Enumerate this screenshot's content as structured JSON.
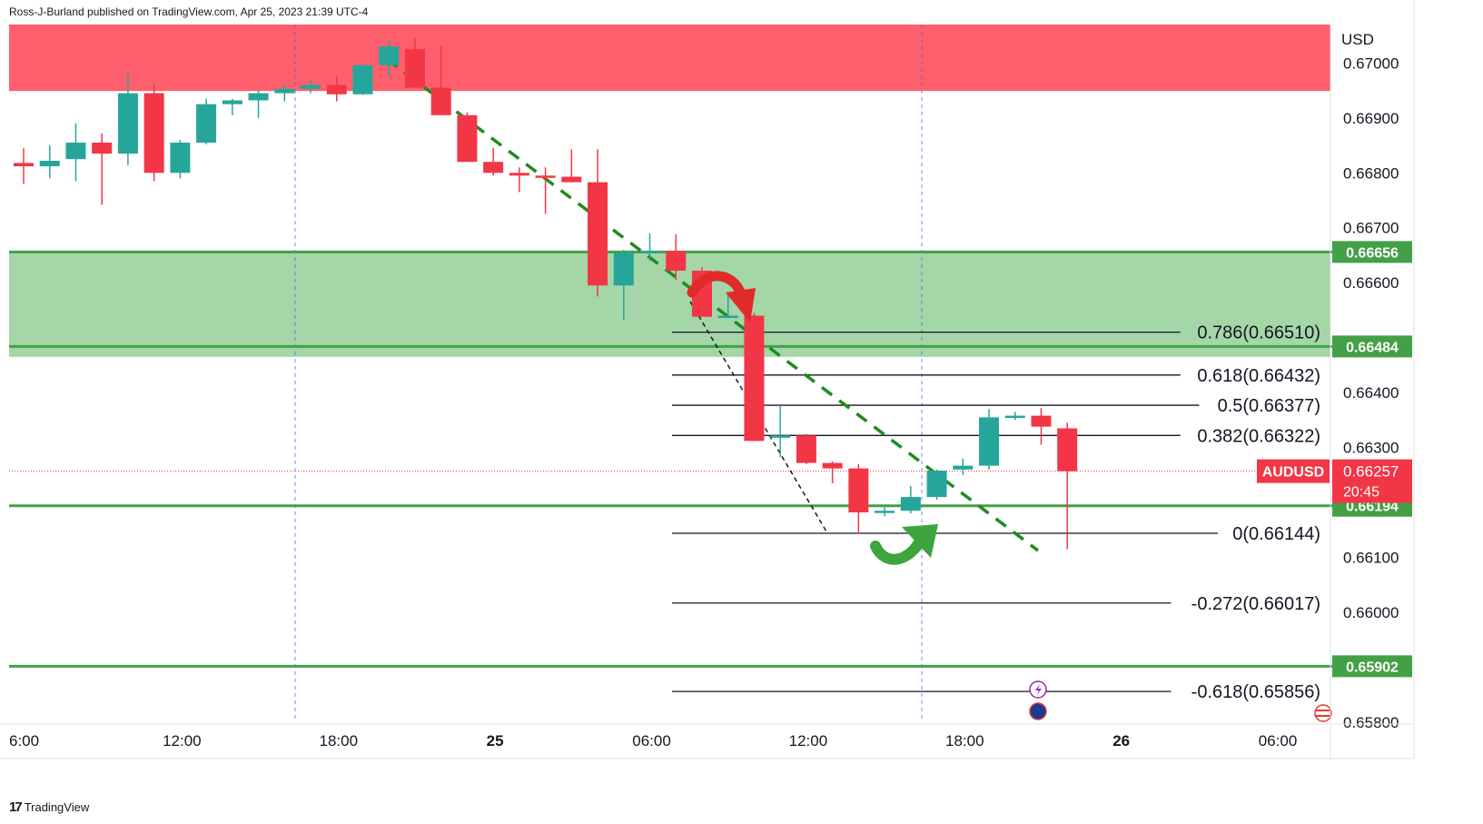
{
  "header": {
    "published_text": "Ross-J-Burland published on TradingView.com, Apr 25, 2023 21:39 UTC-4"
  },
  "footer": {
    "logo_text": "TradingView"
  },
  "colors": {
    "up": "#26a69a",
    "down": "#f23645",
    "resistance_zone": "#ff5f6d",
    "support_zone": "#a5d6a7",
    "level_line": "#43a047",
    "trendline": "#1e8c1e"
  },
  "chart_data": {
    "type": "candlestick",
    "symbol_label": "AUDUSD",
    "currency_label": "USD",
    "current_price": "0.66257",
    "countdown": "20:45",
    "ylim": [
      0.658,
      0.6707
    ],
    "y_ticks": [
      "0.67000",
      "0.66900",
      "0.66800",
      "0.66700",
      "0.66600",
      "0.66400",
      "0.66300",
      "0.66100",
      "0.66000",
      "0.65800"
    ],
    "x_ticks": [
      {
        "label": "6:00",
        "bar": 0
      },
      {
        "label": "12:00",
        "bar": 6
      },
      {
        "label": "18:00",
        "bar": 12
      },
      {
        "label": "25",
        "bar": 18
      },
      {
        "label": "06:00",
        "bar": 24
      },
      {
        "label": "12:00",
        "bar": 30
      },
      {
        "label": "18:00",
        "bar": 36
      },
      {
        "label": "26",
        "bar": 42
      },
      {
        "label": "06:00",
        "bar": 48
      }
    ],
    "candles": [
      {
        "o": 0.66818,
        "h": 0.66845,
        "l": 0.6678,
        "c": 0.66812
      },
      {
        "o": 0.66812,
        "h": 0.6685,
        "l": 0.6679,
        "c": 0.66822
      },
      {
        "o": 0.66825,
        "h": 0.6689,
        "l": 0.66785,
        "c": 0.66855
      },
      {
        "o": 0.66855,
        "h": 0.66872,
        "l": 0.66742,
        "c": 0.66835
      },
      {
        "o": 0.66835,
        "h": 0.6698,
        "l": 0.66814,
        "c": 0.66945
      },
      {
        "o": 0.66945,
        "h": 0.66962,
        "l": 0.66785,
        "c": 0.668
      },
      {
        "o": 0.668,
        "h": 0.6686,
        "l": 0.6679,
        "c": 0.66855
      },
      {
        "o": 0.66855,
        "h": 0.66935,
        "l": 0.66852,
        "c": 0.66925
      },
      {
        "o": 0.66925,
        "h": 0.66935,
        "l": 0.66905,
        "c": 0.66932
      },
      {
        "o": 0.66932,
        "h": 0.6695,
        "l": 0.669,
        "c": 0.66945
      },
      {
        "o": 0.66945,
        "h": 0.6696,
        "l": 0.6693,
        "c": 0.66953
      },
      {
        "o": 0.66953,
        "h": 0.66968,
        "l": 0.66945,
        "c": 0.6696
      },
      {
        "o": 0.6696,
        "h": 0.66975,
        "l": 0.6693,
        "c": 0.66943
      },
      {
        "o": 0.66943,
        "h": 0.66998,
        "l": 0.66942,
        "c": 0.66996
      },
      {
        "o": 0.66996,
        "h": 0.6704,
        "l": 0.66975,
        "c": 0.6703
      },
      {
        "o": 0.67025,
        "h": 0.67045,
        "l": 0.66955,
        "c": 0.66955
      },
      {
        "o": 0.66955,
        "h": 0.67032,
        "l": 0.66905,
        "c": 0.66905
      },
      {
        "o": 0.66905,
        "h": 0.6691,
        "l": 0.6682,
        "c": 0.6682
      },
      {
        "o": 0.6682,
        "h": 0.66845,
        "l": 0.66795,
        "c": 0.668
      },
      {
        "o": 0.668,
        "h": 0.6681,
        "l": 0.66765,
        "c": 0.66795
      },
      {
        "o": 0.66795,
        "h": 0.6681,
        "l": 0.66725,
        "c": 0.66793
      },
      {
        "o": 0.66793,
        "h": 0.66843,
        "l": 0.66783,
        "c": 0.66783
      },
      {
        "o": 0.66783,
        "h": 0.66843,
        "l": 0.66575,
        "c": 0.66595
      },
      {
        "o": 0.66595,
        "h": 0.6666,
        "l": 0.66532,
        "c": 0.66655
      },
      {
        "o": 0.66655,
        "h": 0.6669,
        "l": 0.6664,
        "c": 0.66658
      },
      {
        "o": 0.66658,
        "h": 0.66688,
        "l": 0.66605,
        "c": 0.66622
      },
      {
        "o": 0.66622,
        "h": 0.66628,
        "l": 0.66538,
        "c": 0.66538
      },
      {
        "o": 0.66537,
        "h": 0.6658,
        "l": 0.66535,
        "c": 0.6654
      },
      {
        "o": 0.6654,
        "h": 0.66545,
        "l": 0.66312,
        "c": 0.66312
      },
      {
        "o": 0.6632,
        "h": 0.66377,
        "l": 0.66283,
        "c": 0.66322
      },
      {
        "o": 0.66322,
        "h": 0.66325,
        "l": 0.6627,
        "c": 0.66272
      },
      {
        "o": 0.66272,
        "h": 0.66275,
        "l": 0.66235,
        "c": 0.66262
      },
      {
        "o": 0.66262,
        "h": 0.6627,
        "l": 0.66143,
        "c": 0.66182
      },
      {
        "o": 0.66181,
        "h": 0.66195,
        "l": 0.66175,
        "c": 0.66185
      },
      {
        "o": 0.66185,
        "h": 0.6623,
        "l": 0.6618,
        "c": 0.6621
      },
      {
        "o": 0.6621,
        "h": 0.6626,
        "l": 0.66205,
        "c": 0.66258
      },
      {
        "o": 0.6626,
        "h": 0.6628,
        "l": 0.6625,
        "c": 0.66267
      },
      {
        "o": 0.66267,
        "h": 0.6637,
        "l": 0.6626,
        "c": 0.66355
      },
      {
        "o": 0.66355,
        "h": 0.66365,
        "l": 0.6635,
        "c": 0.66358
      },
      {
        "o": 0.66358,
        "h": 0.66372,
        "l": 0.66305,
        "c": 0.66338
      },
      {
        "o": 0.66335,
        "h": 0.66345,
        "l": 0.66115,
        "c": 0.66257
      }
    ],
    "zones": [
      {
        "name": "resistance",
        "from": 0.66949,
        "to": 0.6707
      },
      {
        "name": "support",
        "from": 0.66465,
        "to": 0.66656
      }
    ],
    "levels": [
      {
        "value": 0.66656,
        "label": "0.66656"
      },
      {
        "value": 0.66484,
        "label": "0.66484"
      },
      {
        "value": 0.66194,
        "label": "0.66194"
      },
      {
        "value": 0.65902,
        "label": "0.65902"
      }
    ],
    "fib_levels": [
      {
        "value": 0.6651,
        "label": "0.786(0.66510)"
      },
      {
        "value": 0.66432,
        "label": "0.618(0.66432)"
      },
      {
        "value": 0.66377,
        "label": "0.5(0.66377)"
      },
      {
        "value": 0.66322,
        "label": "0.382(0.66322)"
      },
      {
        "value": 0.66144,
        "label": "0(0.66144)"
      },
      {
        "value": 0.66017,
        "label": "-0.272(0.66017)"
      },
      {
        "value": 0.65856,
        "label": "-0.618(0.65856)"
      }
    ]
  }
}
